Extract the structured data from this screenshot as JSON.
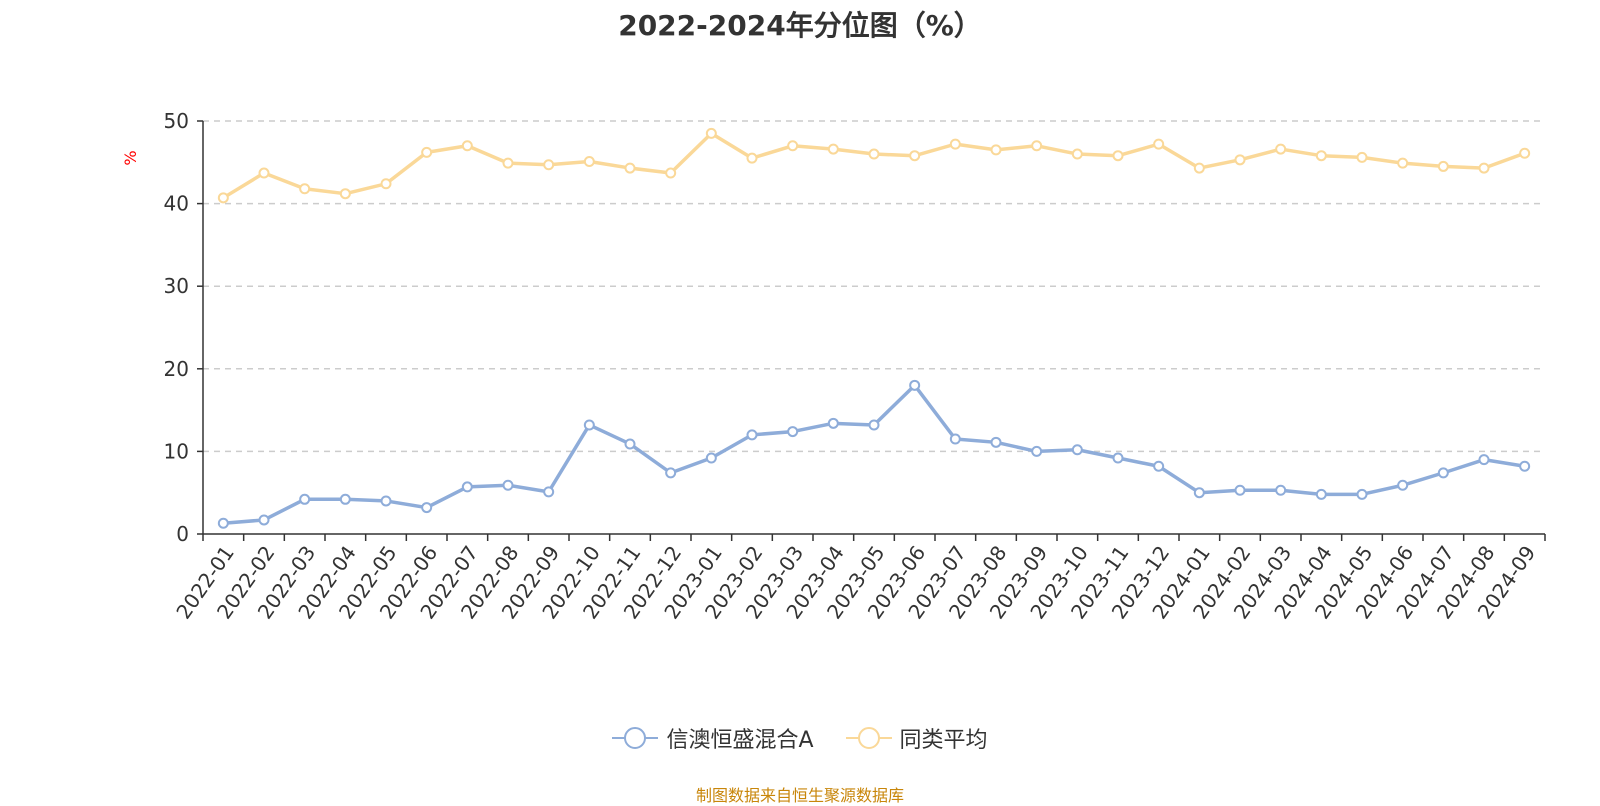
{
  "chart_data": {
    "type": "line",
    "title": "2022-2024年分位图（%）",
    "ylabel": "%",
    "xlabel": "",
    "ylim": [
      0,
      50
    ],
    "yticks": [
      0,
      10,
      20,
      30,
      40,
      50
    ],
    "grid": true,
    "legend_position": "bottom",
    "categories": [
      "2022-01",
      "2022-02",
      "2022-03",
      "2022-04",
      "2022-05",
      "2022-06",
      "2022-07",
      "2022-08",
      "2022-09",
      "2022-10",
      "2022-11",
      "2022-12",
      "2023-01",
      "2023-02",
      "2023-03",
      "2023-04",
      "2023-05",
      "2023-06",
      "2023-07",
      "2023-08",
      "2023-09",
      "2023-10",
      "2023-11",
      "2023-12",
      "2024-01",
      "2024-02",
      "2024-03",
      "2024-04",
      "2024-05",
      "2024-06",
      "2024-07",
      "2024-08",
      "2024-09"
    ],
    "series": [
      {
        "name": "信澳恒盛混合A",
        "color": "#8eacd9",
        "values": [
          1.3,
          1.7,
          4.2,
          4.2,
          4.0,
          3.2,
          5.7,
          5.9,
          5.1,
          13.2,
          10.9,
          7.4,
          9.2,
          12.0,
          12.4,
          13.4,
          13.2,
          18.0,
          11.5,
          11.1,
          10.0,
          10.2,
          9.2,
          8.2,
          5.0,
          5.3,
          5.3,
          4.8,
          4.8,
          5.9,
          7.4,
          9.0,
          8.2
        ]
      },
      {
        "name": "同类平均",
        "color": "#fad898",
        "values": [
          40.7,
          43.7,
          41.8,
          41.2,
          42.4,
          46.2,
          47.0,
          44.9,
          44.7,
          45.1,
          44.3,
          43.7,
          48.5,
          45.5,
          47.0,
          46.6,
          46.0,
          45.8,
          47.2,
          46.5,
          47.0,
          46.0,
          45.8,
          47.2,
          44.3,
          45.3,
          46.6,
          45.8,
          45.6,
          44.9,
          44.5,
          44.3,
          46.1
        ]
      }
    ]
  },
  "source_note": "制图数据来自恒生聚源数据库"
}
